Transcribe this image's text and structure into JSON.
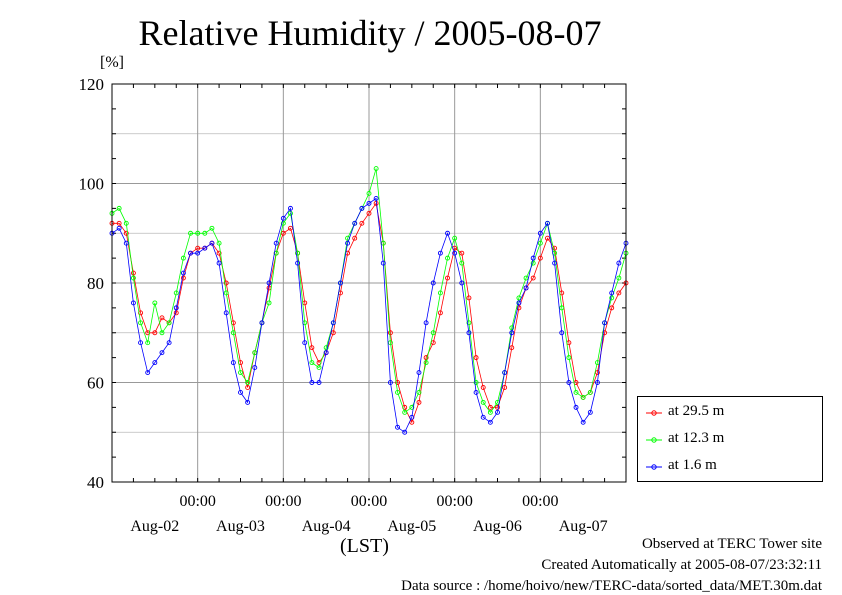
{
  "title": "Relative Humidity / 2005-08-07",
  "unit": "[%]",
  "footer": {
    "lst": "(LST)",
    "site": "Observed at TERC Tower site",
    "created": "Created Automatically at 2005-08-07/23:32:11",
    "source": "Data source : /home/hoivo/new/TERC-data/sorted_data/MET.30m.dat"
  },
  "colors": {
    "s1": "#ff0000",
    "s2": "#00ff00",
    "s3": "#0000ff"
  },
  "chart_data": {
    "type": "line",
    "title": "Relative Humidity / 2005-08-07",
    "ylabel": "[%]",
    "xlabel": "(LST)",
    "ylim": [
      40,
      120
    ],
    "yticks": [
      40,
      60,
      80,
      100,
      120
    ],
    "xlim": [
      0,
      144
    ],
    "grid": true,
    "legend_position": "bottom-right",
    "time_ticks": {
      "positions": [
        24,
        48,
        72,
        96,
        120
      ],
      "labels": [
        "00:00",
        "00:00",
        "00:00",
        "00:00",
        "00:00"
      ]
    },
    "date_labels": [
      "Aug-02",
      "Aug-03",
      "Aug-04",
      "Aug-05",
      "Aug-06",
      "Aug-07"
    ],
    "date_label_positions": [
      12,
      36,
      60,
      84,
      108,
      132
    ],
    "series": [
      {
        "name": "at 29.5 m",
        "color": "#ff0000",
        "x": [
          0,
          2,
          4,
          6,
          8,
          10,
          12,
          14,
          16,
          18,
          20,
          22,
          24,
          26,
          28,
          30,
          32,
          34,
          36,
          38,
          40,
          42,
          44,
          46,
          48,
          50,
          52,
          54,
          56,
          58,
          60,
          62,
          64,
          66,
          68,
          70,
          72,
          74,
          76,
          78,
          80,
          82,
          84,
          86,
          88,
          90,
          92,
          94,
          96,
          98,
          100,
          102,
          104,
          106,
          108,
          110,
          112,
          114,
          116,
          118,
          120,
          122,
          124,
          126,
          128,
          130,
          132,
          134,
          136,
          138,
          140,
          142,
          144
        ],
        "y": [
          92,
          92,
          90,
          82,
          74,
          70,
          70,
          73,
          72,
          74,
          81,
          86,
          87,
          87,
          88,
          86,
          80,
          72,
          64,
          59,
          66,
          72,
          79,
          86,
          90,
          91,
          86,
          76,
          67,
          64,
          66,
          70,
          78,
          86,
          89,
          92,
          94,
          96,
          88,
          70,
          60,
          55,
          52,
          56,
          65,
          68,
          74,
          81,
          87,
          86,
          77,
          65,
          59,
          55,
          55,
          59,
          67,
          75,
          79,
          81,
          85,
          89,
          87,
          78,
          68,
          60,
          57,
          58,
          62,
          70,
          75,
          78,
          80
        ]
      },
      {
        "name": "at 12.3 m",
        "color": "#00ff00",
        "x": [
          0,
          2,
          4,
          6,
          8,
          10,
          12,
          14,
          16,
          18,
          20,
          22,
          24,
          26,
          28,
          30,
          32,
          34,
          36,
          38,
          40,
          42,
          44,
          46,
          48,
          50,
          52,
          54,
          56,
          58,
          60,
          62,
          64,
          66,
          68,
          70,
          72,
          74,
          76,
          78,
          80,
          82,
          84,
          86,
          88,
          90,
          92,
          94,
          96,
          98,
          100,
          102,
          104,
          106,
          108,
          110,
          112,
          114,
          116,
          118,
          120,
          122,
          124,
          126,
          128,
          130,
          132,
          134,
          136,
          138,
          140,
          142,
          144
        ],
        "y": [
          94,
          95,
          92,
          81,
          72,
          68,
          76,
          70,
          72,
          78,
          85,
          90,
          90,
          90,
          91,
          88,
          78,
          70,
          62,
          60,
          66,
          72,
          76,
          86,
          92,
          94,
          86,
          72,
          64,
          63,
          67,
          72,
          80,
          89,
          92,
          95,
          98,
          103,
          88,
          68,
          58,
          54,
          55,
          58,
          64,
          70,
          78,
          85,
          89,
          84,
          72,
          60,
          56,
          54,
          56,
          62,
          71,
          77,
          81,
          84,
          88,
          92,
          86,
          75,
          65,
          58,
          57,
          58,
          64,
          72,
          77,
          81,
          86
        ]
      },
      {
        "name": "at 1.6 m",
        "color": "#0000ff",
        "x": [
          0,
          2,
          4,
          6,
          8,
          10,
          12,
          14,
          16,
          18,
          20,
          22,
          24,
          26,
          28,
          30,
          32,
          34,
          36,
          38,
          40,
          42,
          44,
          46,
          48,
          50,
          52,
          54,
          56,
          58,
          60,
          62,
          64,
          66,
          68,
          70,
          72,
          74,
          76,
          78,
          80,
          82,
          84,
          86,
          88,
          90,
          92,
          94,
          96,
          98,
          100,
          102,
          104,
          106,
          108,
          110,
          112,
          114,
          116,
          118,
          120,
          122,
          124,
          126,
          128,
          130,
          132,
          134,
          136,
          138,
          140,
          142,
          144
        ],
        "y": [
          90,
          91,
          88,
          76,
          68,
          62,
          64,
          66,
          68,
          75,
          82,
          86,
          86,
          87,
          88,
          84,
          74,
          64,
          58,
          56,
          63,
          72,
          80,
          88,
          93,
          95,
          84,
          68,
          60,
          60,
          66,
          72,
          80,
          88,
          92,
          95,
          96,
          97,
          84,
          60,
          51,
          50,
          53,
          62,
          72,
          80,
          86,
          90,
          86,
          80,
          70,
          58,
          53,
          52,
          54,
          62,
          70,
          76,
          79,
          85,
          90,
          92,
          84,
          70,
          60,
          55,
          52,
          54,
          60,
          72,
          78,
          84,
          88
        ]
      }
    ]
  }
}
